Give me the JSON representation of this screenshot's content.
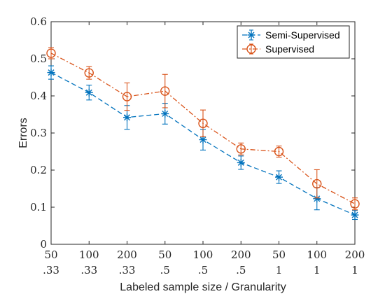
{
  "chart_data": {
    "type": "line",
    "xlabel": "Labeled sample size / Granularity",
    "ylabel": "Errors",
    "ylim": [
      0,
      0.6
    ],
    "yticks": [
      0,
      0.1,
      0.2,
      0.3,
      0.4,
      0.5,
      0.6
    ],
    "ytick_labels": [
      "0",
      "0.1",
      "0.2",
      "0.3",
      "0.4",
      "0.5",
      "0.6"
    ],
    "categories": [
      {
        "size": "50",
        "granularity": ".33"
      },
      {
        "size": "100",
        "granularity": ".33"
      },
      {
        "size": "200",
        "granularity": ".33"
      },
      {
        "size": "50",
        "granularity": ".5"
      },
      {
        "size": "100",
        "granularity": ".5"
      },
      {
        "size": "200",
        "granularity": ".5"
      },
      {
        "size": "50",
        "granularity": "1"
      },
      {
        "size": "100",
        "granularity": "1"
      },
      {
        "size": "200",
        "granularity": "1"
      }
    ],
    "legend_position": "top-right",
    "grid": false,
    "series": [
      {
        "name": "Semi-Supervised",
        "color": "#0072BD",
        "marker": "asterisk",
        "line_style": "dashed",
        "values": [
          0.463,
          0.409,
          0.342,
          0.352,
          0.282,
          0.22,
          0.181,
          0.123,
          0.079
        ],
        "errors": [
          0.018,
          0.02,
          0.032,
          0.028,
          0.028,
          0.018,
          0.017,
          0.03,
          0.012
        ]
      },
      {
        "name": "Supervised",
        "color": "#D95319",
        "marker": "circle",
        "line_style": "dash-dot",
        "values": [
          0.515,
          0.462,
          0.398,
          0.413,
          0.326,
          0.257,
          0.25,
          0.163,
          0.109
        ],
        "errors": [
          0.015,
          0.017,
          0.037,
          0.045,
          0.036,
          0.016,
          0.015,
          0.038,
          0.016
        ]
      }
    ]
  }
}
